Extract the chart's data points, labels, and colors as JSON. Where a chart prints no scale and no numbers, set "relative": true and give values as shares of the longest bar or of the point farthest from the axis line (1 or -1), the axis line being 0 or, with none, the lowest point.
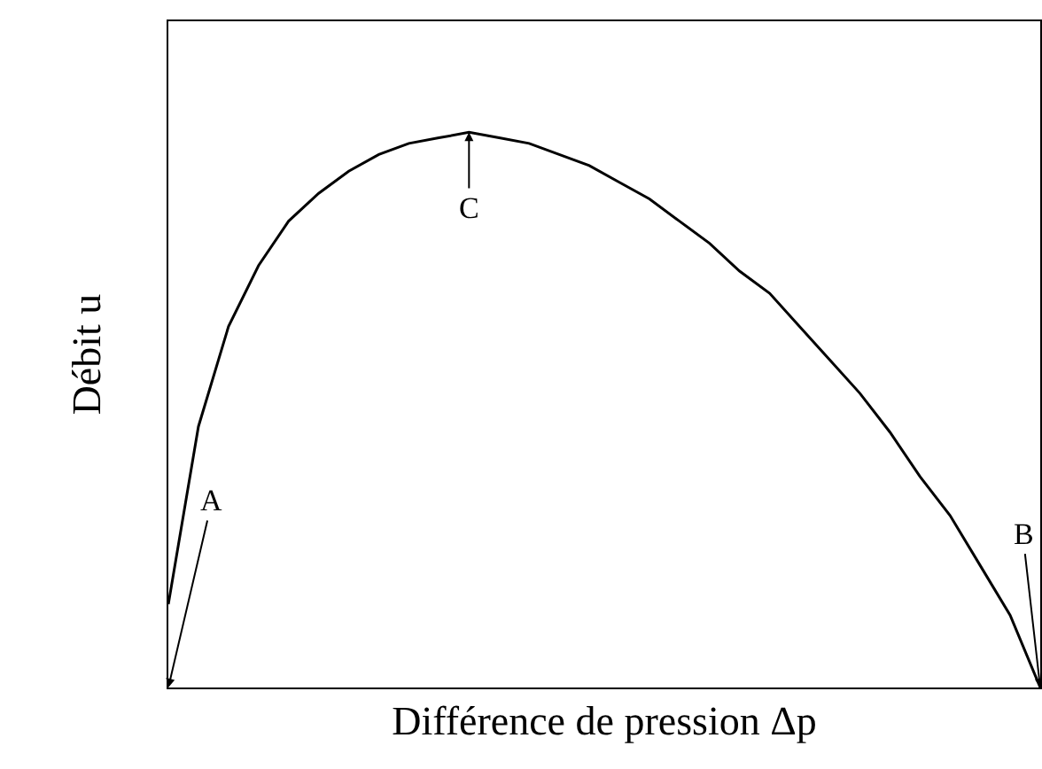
{
  "chart_data": {
    "type": "line",
    "relative": true,
    "xlabel": "Différence de pression Δp",
    "ylabel": "Débit u",
    "categories": [
      null,
      null,
      null,
      null,
      null,
      null,
      null,
      null,
      null,
      null,
      null,
      null,
      null,
      null,
      null,
      null,
      null,
      null,
      null,
      null,
      null,
      null,
      null,
      null,
      null,
      null,
      null,
      null,
      null,
      null
    ],
    "series": [
      {
        "color": "#000000",
        "values": [
          0.15,
          0.47,
          0.65,
          0.76,
          0.84,
          0.89,
          0.93,
          0.96,
          0.98,
          0.99,
          1.0,
          0.99,
          0.98,
          0.96,
          0.94,
          0.91,
          0.88,
          0.84,
          0.8,
          0.75,
          0.71,
          0.65,
          0.59,
          0.53,
          0.46,
          0.38,
          0.31,
          0.22,
          0.13,
          0
        ]
      }
    ],
    "annotations": [
      "A",
      "C",
      "B"
    ],
    "grid": false,
    "marker": "none",
    "line_style": "solid"
  }
}
